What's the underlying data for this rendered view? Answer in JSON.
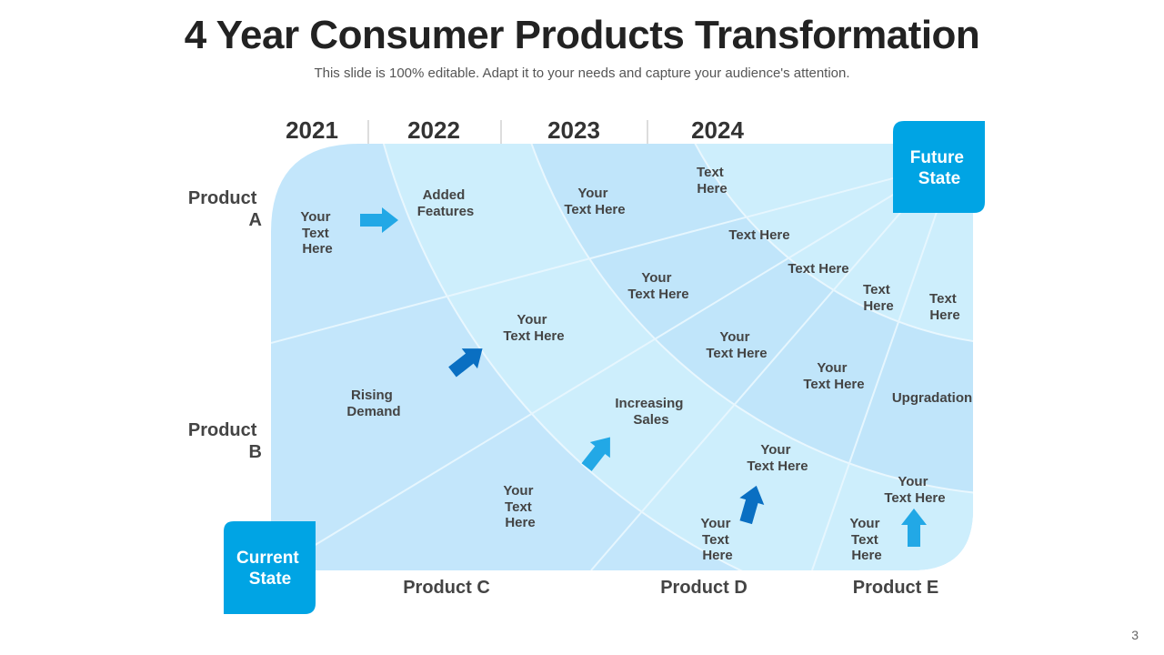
{
  "title": "4 Year Consumer Products Transformation",
  "subtitle": "This slide is 100% editable. Adapt it to your needs and capture your audience's attention.",
  "years": [
    "2021",
    "2022",
    "2023",
    "2024"
  ],
  "products_left": [
    [
      "Product",
      "A"
    ],
    [
      "Product",
      "B"
    ]
  ],
  "products_bottom": [
    "Product C",
    "Product D",
    "Product E"
  ],
  "current_state": [
    "Current",
    "State"
  ],
  "future_state": [
    "Future",
    "State"
  ],
  "labels": [
    [
      "Your",
      "Text",
      "Here"
    ],
    [
      "Added",
      "Features"
    ],
    [
      "Your",
      "Text Here"
    ],
    [
      "Text",
      "Here"
    ],
    [
      "Text Here"
    ],
    [
      "Text Here"
    ],
    [
      "Your",
      "Text Here"
    ],
    [
      "Text",
      "Here"
    ],
    [
      "Text",
      "Here"
    ],
    [
      "Your",
      "Text Here"
    ],
    [
      "Your",
      "Text Here"
    ],
    [
      "Your",
      "Text Here"
    ],
    [
      "Rising",
      "Demand"
    ],
    [
      "Increasing",
      "Sales"
    ],
    [
      "Upgradation"
    ],
    [
      "Your",
      "Text Here"
    ],
    [
      "Your",
      "Text",
      "Here"
    ],
    [
      "Your",
      "Text Here"
    ],
    [
      "Your",
      "Text",
      "Here"
    ],
    [
      "Your",
      "Text",
      "Here"
    ]
  ],
  "page_number": "3",
  "colors": {
    "band_light": "#cdeefc",
    "band_mid": "#bfe6fb",
    "accent": "#00a4e4",
    "arrow_light": "#22a8e6",
    "arrow_dark": "#0a6fc2"
  }
}
